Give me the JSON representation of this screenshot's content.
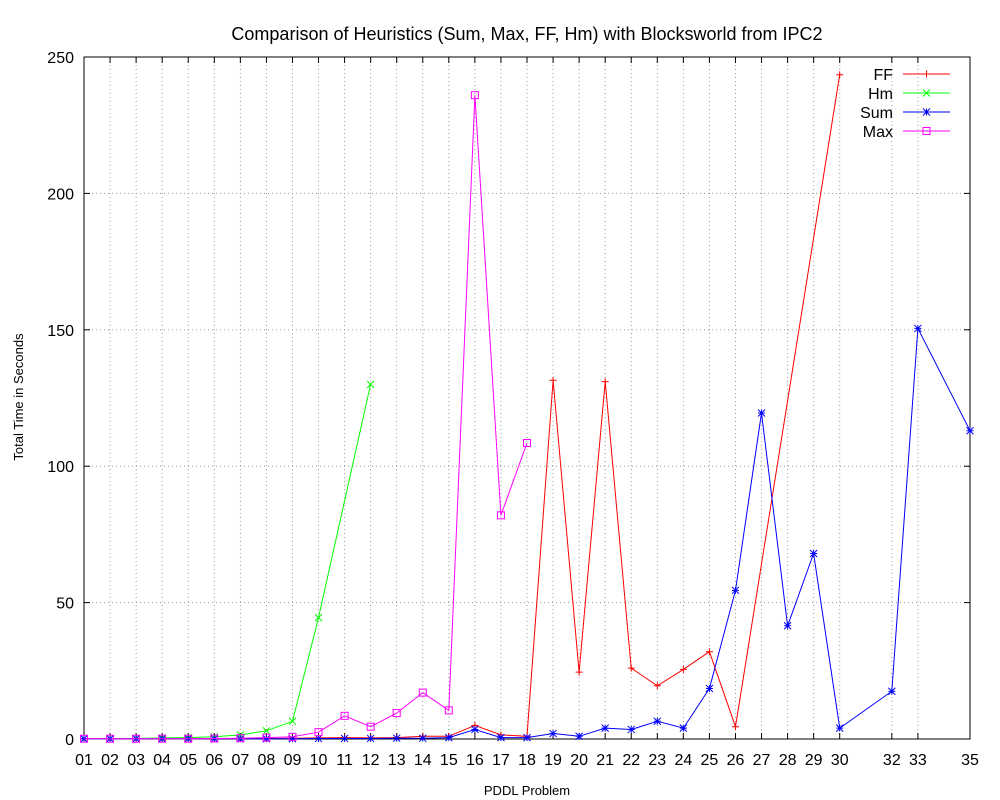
{
  "chart_data": {
    "type": "line",
    "title": "Comparison of Heuristics (Sum, Max, FF, Hm) with Blocksworld from IPC2",
    "xlabel": "PDDL Problem",
    "ylabel": "Total Time in Seconds",
    "x_ticks": [
      "01",
      "02",
      "03",
      "04",
      "05",
      "06",
      "07",
      "08",
      "09",
      "10",
      "11",
      "12",
      "13",
      "14",
      "15",
      "16",
      "17",
      "18",
      "19",
      "20",
      "21",
      "22",
      "23",
      "24",
      "25",
      "26",
      "27",
      "28",
      "29",
      "30",
      "32",
      "33",
      "35"
    ],
    "y_ticks": [
      "0",
      "50",
      "100",
      "150",
      "200",
      "250"
    ],
    "ylim": [
      0,
      250
    ],
    "grid": true,
    "legend_position": "top-right",
    "series": [
      {
        "name": "FF",
        "color": "#ff0000",
        "marker": "plus",
        "points": [
          [
            1,
            0.1
          ],
          [
            2,
            0.1
          ],
          [
            3,
            0.1
          ],
          [
            4,
            0.1
          ],
          [
            5,
            0.1
          ],
          [
            6,
            0.1
          ],
          [
            7,
            0.2
          ],
          [
            8,
            0.2
          ],
          [
            9,
            0.3
          ],
          [
            10,
            0.4
          ],
          [
            11,
            0.5
          ],
          [
            12,
            0.4
          ],
          [
            13,
            0.5
          ],
          [
            14,
            1
          ],
          [
            15,
            1
          ],
          [
            16,
            5
          ],
          [
            17,
            1.5
          ],
          [
            18,
            1
          ],
          [
            19,
            131.5
          ],
          [
            20,
            24.5
          ],
          [
            21,
            131
          ],
          [
            22,
            26
          ],
          [
            23,
            19.5
          ],
          [
            24,
            25.5
          ],
          [
            25,
            32
          ],
          [
            26,
            4.5
          ],
          [
            30,
            243.5
          ]
        ]
      },
      {
        "name": "Hm",
        "color": "#00ff00",
        "marker": "x",
        "points": [
          [
            1,
            0.1
          ],
          [
            2,
            0.1
          ],
          [
            3,
            0.2
          ],
          [
            4,
            0.4
          ],
          [
            5,
            0.5
          ],
          [
            6,
            0.8
          ],
          [
            7,
            1.5
          ],
          [
            8,
            3
          ],
          [
            9,
            6.5
          ],
          [
            10,
            44.5
          ],
          [
            12,
            130
          ]
        ]
      },
      {
        "name": "Sum",
        "color": "#0000ff",
        "marker": "star",
        "points": [
          [
            1,
            0.1
          ],
          [
            2,
            0.1
          ],
          [
            3,
            0.1
          ],
          [
            4,
            0.1
          ],
          [
            5,
            0.1
          ],
          [
            6,
            0.1
          ],
          [
            7,
            0.1
          ],
          [
            8,
            0.1
          ],
          [
            9,
            0.1
          ],
          [
            10,
            0.2
          ],
          [
            11,
            0.2
          ],
          [
            12,
            0.2
          ],
          [
            13,
            0.3
          ],
          [
            14,
            0.3
          ],
          [
            15,
            0.5
          ],
          [
            16,
            3.5
          ],
          [
            17,
            0.5
          ],
          [
            18,
            0.5
          ],
          [
            19,
            2
          ],
          [
            20,
            1
          ],
          [
            21,
            4
          ],
          [
            22,
            3.5
          ],
          [
            23,
            6.5
          ],
          [
            24,
            4
          ],
          [
            25,
            18.5
          ],
          [
            26,
            54.5
          ],
          [
            27,
            119.5
          ],
          [
            28,
            41.5
          ],
          [
            29,
            68
          ],
          [
            30,
            4
          ],
          [
            32,
            17.5
          ],
          [
            33,
            150.5
          ],
          [
            35,
            113
          ]
        ]
      },
      {
        "name": "Max",
        "color": "#ff00ff",
        "marker": "square",
        "points": [
          [
            1,
            0.1
          ],
          [
            2,
            0.1
          ],
          [
            3,
            0.1
          ],
          [
            4,
            0.1
          ],
          [
            5,
            0.1
          ],
          [
            6,
            0.2
          ],
          [
            7,
            0.3
          ],
          [
            8,
            0.5
          ],
          [
            9,
            0.8
          ],
          [
            10,
            2.5
          ],
          [
            11,
            8.5
          ],
          [
            12,
            4.5
          ],
          [
            13,
            9.5
          ],
          [
            14,
            17
          ],
          [
            15,
            10.5
          ],
          [
            16,
            236
          ],
          [
            17,
            82
          ],
          [
            18,
            108.5
          ]
        ]
      }
    ]
  }
}
